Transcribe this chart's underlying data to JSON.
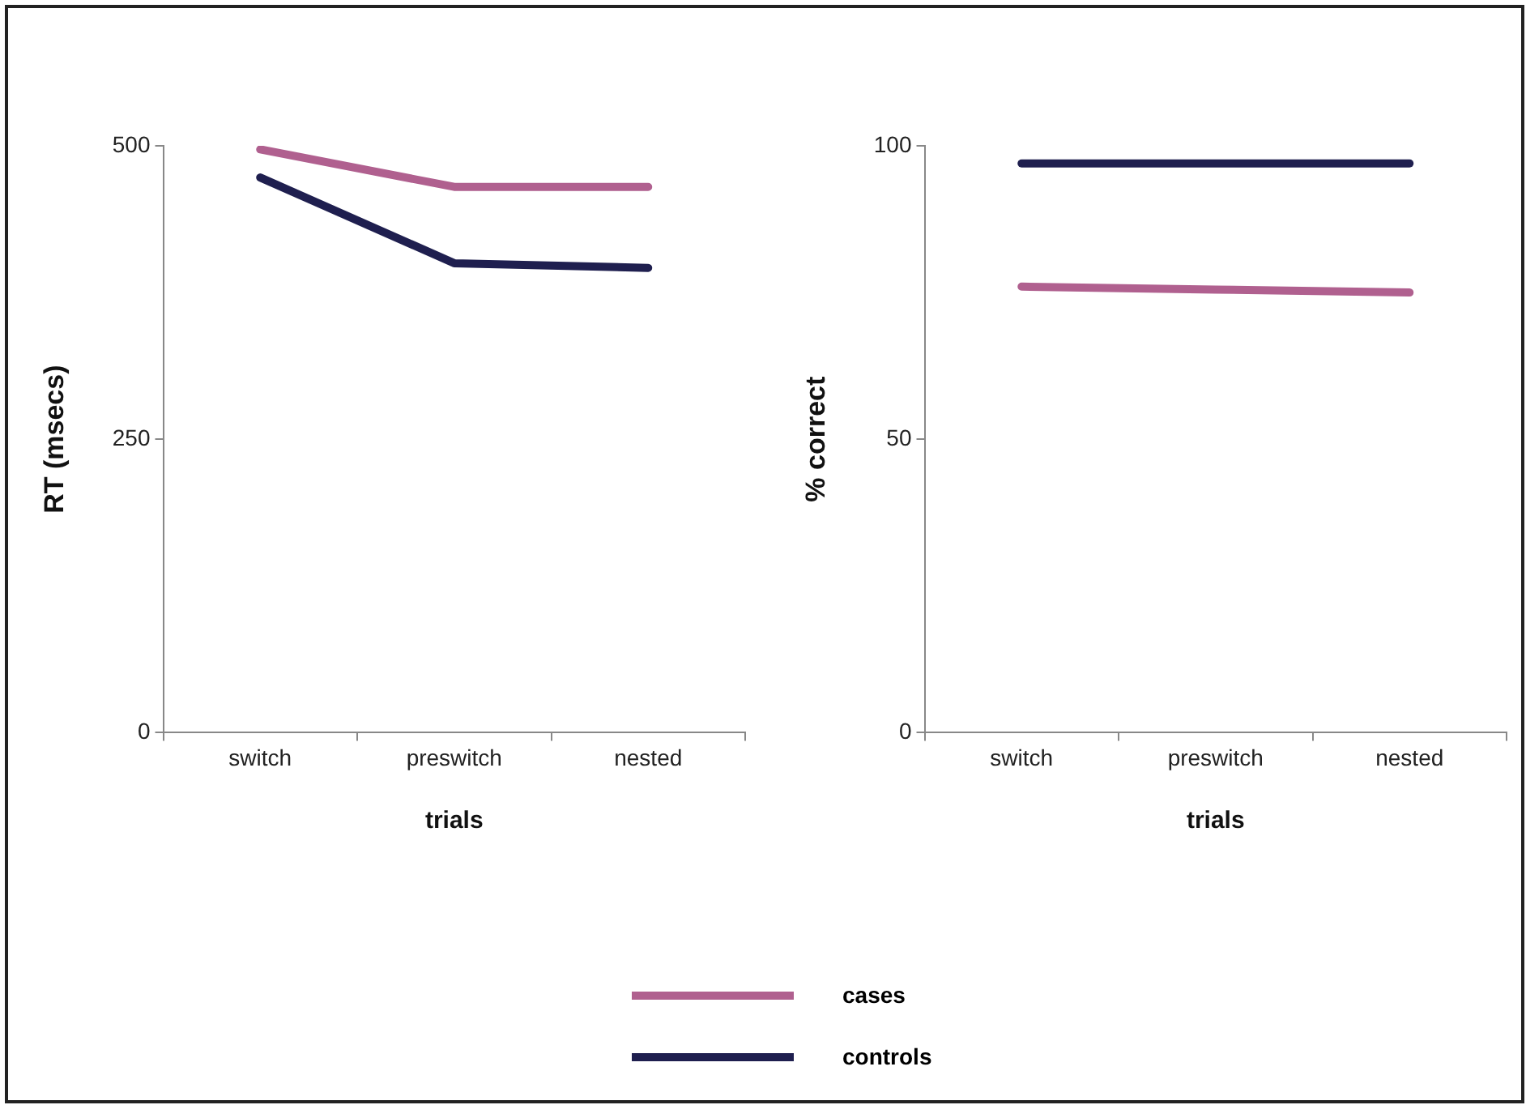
{
  "chart_data": [
    {
      "type": "line",
      "categories": [
        "switch",
        "preswitch",
        "nested"
      ],
      "xlabel": "trials",
      "ylabel": "RT (msecs)",
      "ylim": [
        0,
        500
      ],
      "yticks": [
        0,
        250,
        500
      ],
      "grid": false,
      "legend": "bottom",
      "marker": "none",
      "line_style": "solid",
      "series": [
        {
          "name": "cases",
          "color": "#b0608f",
          "values": [
            497,
            465,
            465
          ]
        },
        {
          "name": "controls",
          "color": "#1f1f4f",
          "values": [
            473,
            400,
            396
          ]
        }
      ]
    },
    {
      "type": "line",
      "categories": [
        "switch",
        "preswitch",
        "nested"
      ],
      "xlabel": "trials",
      "ylabel": "% correct",
      "ylim": [
        0,
        100
      ],
      "yticks": [
        0,
        50,
        100
      ],
      "grid": false,
      "marker": "none",
      "line_style": "solid",
      "series": [
        {
          "color": "#b0608f",
          "values": [
            76,
            75.5,
            75
          ]
        },
        {
          "color": "#1f1f4f",
          "values": [
            97,
            97,
            97
          ]
        }
      ]
    }
  ]
}
